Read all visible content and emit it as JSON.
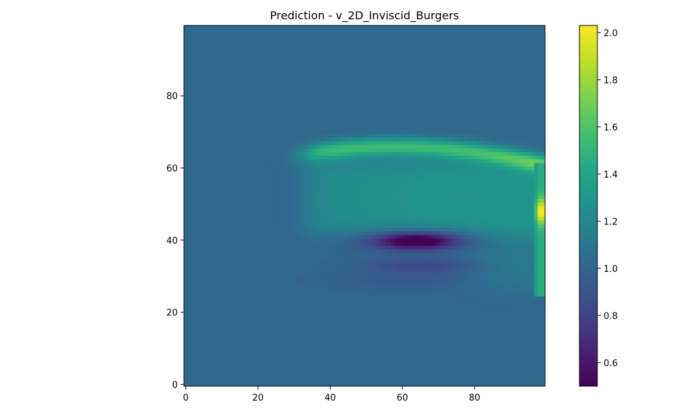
{
  "chart_data": {
    "type": "heatmap",
    "title": "Prediction - v_2D_Inviscid_Burgers",
    "xlabel": "",
    "ylabel": "",
    "grid": false,
    "colormap": "viridis",
    "xlim": [
      -0.5,
      99.5
    ],
    "ylim": [
      -0.5,
      99.5
    ],
    "x_ticks": [
      0,
      20,
      40,
      60,
      80
    ],
    "y_ticks": [
      0,
      20,
      40,
      60,
      80
    ],
    "colorbar": {
      "min": 0.5,
      "max": 2.03,
      "ticks": [
        0.6,
        0.8,
        1.0,
        1.2,
        1.4,
        1.6,
        1.8,
        2.0
      ],
      "tick_labels": [
        "0.6",
        "0.8",
        "1.0",
        "1.2",
        "1.4",
        "1.6",
        "1.8",
        "2.0"
      ],
      "placement": "right"
    },
    "grid_size": [
      100,
      100
    ],
    "background_value": 1.0,
    "features": [
      {
        "region": "upper band",
        "x_range": [
          32,
          98
        ],
        "y_center": 65,
        "value": 1.5
      },
      {
        "region": "interior plateau",
        "x_range": [
          32,
          96
        ],
        "y_range": [
          42,
          62
        ],
        "value": 1.3
      },
      {
        "region": "low trough",
        "x_center": 64,
        "y_center": 40,
        "value": 0.52
      },
      {
        "region": "secondary trough",
        "x_center": 66,
        "y_center": 33,
        "value": 0.85
      },
      {
        "region": "right edge peak",
        "x_range": [
          97,
          98
        ],
        "y_range": [
          26,
          61
        ],
        "y_peak": 48,
        "value": 2.03
      }
    ]
  }
}
